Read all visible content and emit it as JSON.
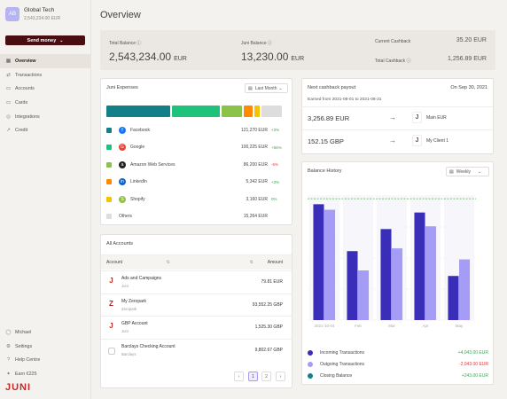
{
  "org": {
    "initials": "AB",
    "name": "Global Tech",
    "balance": "2,543,234.00 EUR"
  },
  "send_money": "Send money",
  "nav": {
    "items": [
      {
        "label": "Overview",
        "icon": "grid-icon",
        "glyph": "▦"
      },
      {
        "label": "Transactions",
        "icon": "transfer-icon",
        "glyph": "⇄"
      },
      {
        "label": "Accounts",
        "icon": "accounts-icon",
        "glyph": "▭"
      },
      {
        "label": "Cards",
        "icon": "card-icon",
        "glyph": "▭"
      },
      {
        "label": "Integrations",
        "icon": "integrations-icon",
        "glyph": "◎"
      },
      {
        "label": "Credit",
        "icon": "credit-icon",
        "glyph": "↗"
      }
    ],
    "bottom": [
      {
        "label": "Michael",
        "icon": "user-icon",
        "glyph": "◯"
      },
      {
        "label": "Settings",
        "icon": "gear-icon",
        "glyph": "⚙"
      },
      {
        "label": "Help Centre",
        "icon": "help-icon",
        "glyph": "?"
      },
      {
        "label": "Earn €225",
        "icon": "gift-icon",
        "glyph": "✦"
      }
    ]
  },
  "brand": {
    "logo": "JUNI",
    "accent": "#c62828"
  },
  "page": {
    "title": "Overview"
  },
  "summary": {
    "total_balance_label": "Total Balance",
    "total_balance": "2,543,234.00",
    "total_balance_cur": "EUR",
    "juni_balance_label": "Juni Balance",
    "juni_balance": "13,230.00",
    "juni_balance_cur": "EUR",
    "current_cashback_label": "Current Cashback",
    "current_cashback": "35.20 EUR",
    "total_cashback_label": "Total Cashback",
    "total_cashback": "1,256.89 EUR"
  },
  "expenses": {
    "title": "Juni Expenses",
    "period": "Last Month",
    "items": [
      {
        "name": "Facebook",
        "amount": "121,270 EUR",
        "change": "+3%",
        "color": "#137f86",
        "logo_color": "#1877f2",
        "logo_glyph": "f",
        "change_color": "#3aa757"
      },
      {
        "name": "Google",
        "amount": "100,225 EUR",
        "change": "+56%",
        "color": "#1fc27a",
        "logo_color": "#ea4335",
        "logo_glyph": "G",
        "change_color": "#3aa757"
      },
      {
        "name": "Amazon Web Services",
        "amount": "86,200 EUR",
        "change": "-5%",
        "color": "#8bc34a",
        "logo_color": "#222222",
        "logo_glyph": "a",
        "change_color": "#e53935"
      },
      {
        "name": "LinkedIn",
        "amount": "5,342 EUR",
        "change": "+3%",
        "color": "#ff8a00",
        "logo_color": "#0a66c2",
        "logo_glyph": "in",
        "change_color": "#3aa757"
      },
      {
        "name": "Shopify",
        "amount": "3,160 EUR",
        "change": "0%",
        "color": "#f5c400",
        "logo_color": "#95bf47",
        "logo_glyph": "S",
        "change_color": "#3aa757"
      },
      {
        "name": "Others",
        "amount": "15,264 EUR",
        "change": "",
        "color": "#dddddd",
        "logo_color": "",
        "logo_glyph": "",
        "change_color": "#3aa757"
      }
    ],
    "strip": [
      {
        "color": "#137f86",
        "share": 0.37
      },
      {
        "color": "#1fc27a",
        "share": 0.28
      },
      {
        "color": "#8bc34a",
        "share": 0.12
      },
      {
        "color": "#ff8a00",
        "share": 0.05
      },
      {
        "color": "#f5c400",
        "share": 0.03
      },
      {
        "color": "#dddddd",
        "share": 0.12
      }
    ]
  },
  "accounts": {
    "title": "All Accounts",
    "col_account": "Account",
    "col_amount": "Amount",
    "rows": [
      {
        "name": "Ads and Campaigns",
        "sub": "Juni",
        "amount": "79.81 EUR",
        "icon": "juni-icon",
        "glyph": "J",
        "color": "#c62828"
      },
      {
        "name": "My Zeropark",
        "sub": "Zeropark",
        "amount": "93,552.25 GBP",
        "icon": "zeropark-icon",
        "glyph": "Z",
        "color": "#b71c1c"
      },
      {
        "name": "GBP Account",
        "sub": "Juni",
        "amount": "1,525.30 GBP",
        "icon": "juni-icon",
        "glyph": "J",
        "color": "#c62828"
      },
      {
        "name": "Barclays Checking Account",
        "sub": "Barclays",
        "amount": "9,802.67 GBP",
        "icon": "barclays-icon",
        "glyph": "",
        "color": "#555555"
      }
    ],
    "pagination": {
      "prev": "‹",
      "pages": [
        "1",
        "2"
      ],
      "next": "›"
    }
  },
  "cashback": {
    "title": "Next cashback payout",
    "date": "On Sep 30, 2021",
    "earned": "Earned from 2021-08-01 to 2021-08-31",
    "rows": [
      {
        "amount": "3,256.89 EUR",
        "dest": "Main EUR"
      },
      {
        "amount": "152.15 GBP",
        "dest": "My Client 1"
      }
    ]
  },
  "balance_history": {
    "title": "Balance History",
    "period": "Weekly",
    "legend": [
      {
        "label": "Incoming Transactions",
        "value": "+4,043.00 EUR",
        "color": "#3a2db8",
        "value_color": "#3aa757"
      },
      {
        "label": "Outgoing Transactions",
        "value": "-2,043.00 EUR",
        "color": "#a59cf5",
        "value_color": "#e53935"
      },
      {
        "label": "Closing Balance",
        "value": "+243.00 EUR",
        "color": "#137f86",
        "value_color": "#3aa757"
      }
    ]
  },
  "chart_data": {
    "type": "bar",
    "categories": [
      "2021-10-04",
      "Feb",
      "Mar",
      "Apr",
      "May"
    ],
    "series": [
      {
        "name": "Incoming Transactions",
        "values": [
          42,
          25,
          33,
          39,
          16
        ],
        "color": "#3a2db8"
      },
      {
        "name": "Outgoing Transactions",
        "values": [
          40,
          18,
          26,
          34,
          22
        ],
        "color": "#a59cf5"
      }
    ],
    "closing_balance_series": {
      "name": "Closing Balance",
      "values": [
        44,
        44,
        44,
        44,
        44
      ],
      "color": "#4caf50"
    },
    "ylim": [
      0,
      45
    ],
    "y_ticks_left": [
      "",
      "",
      "",
      "",
      ""
    ],
    "y_ticks_right": [
      "",
      "",
      "",
      "",
      ""
    ],
    "grid": true
  }
}
